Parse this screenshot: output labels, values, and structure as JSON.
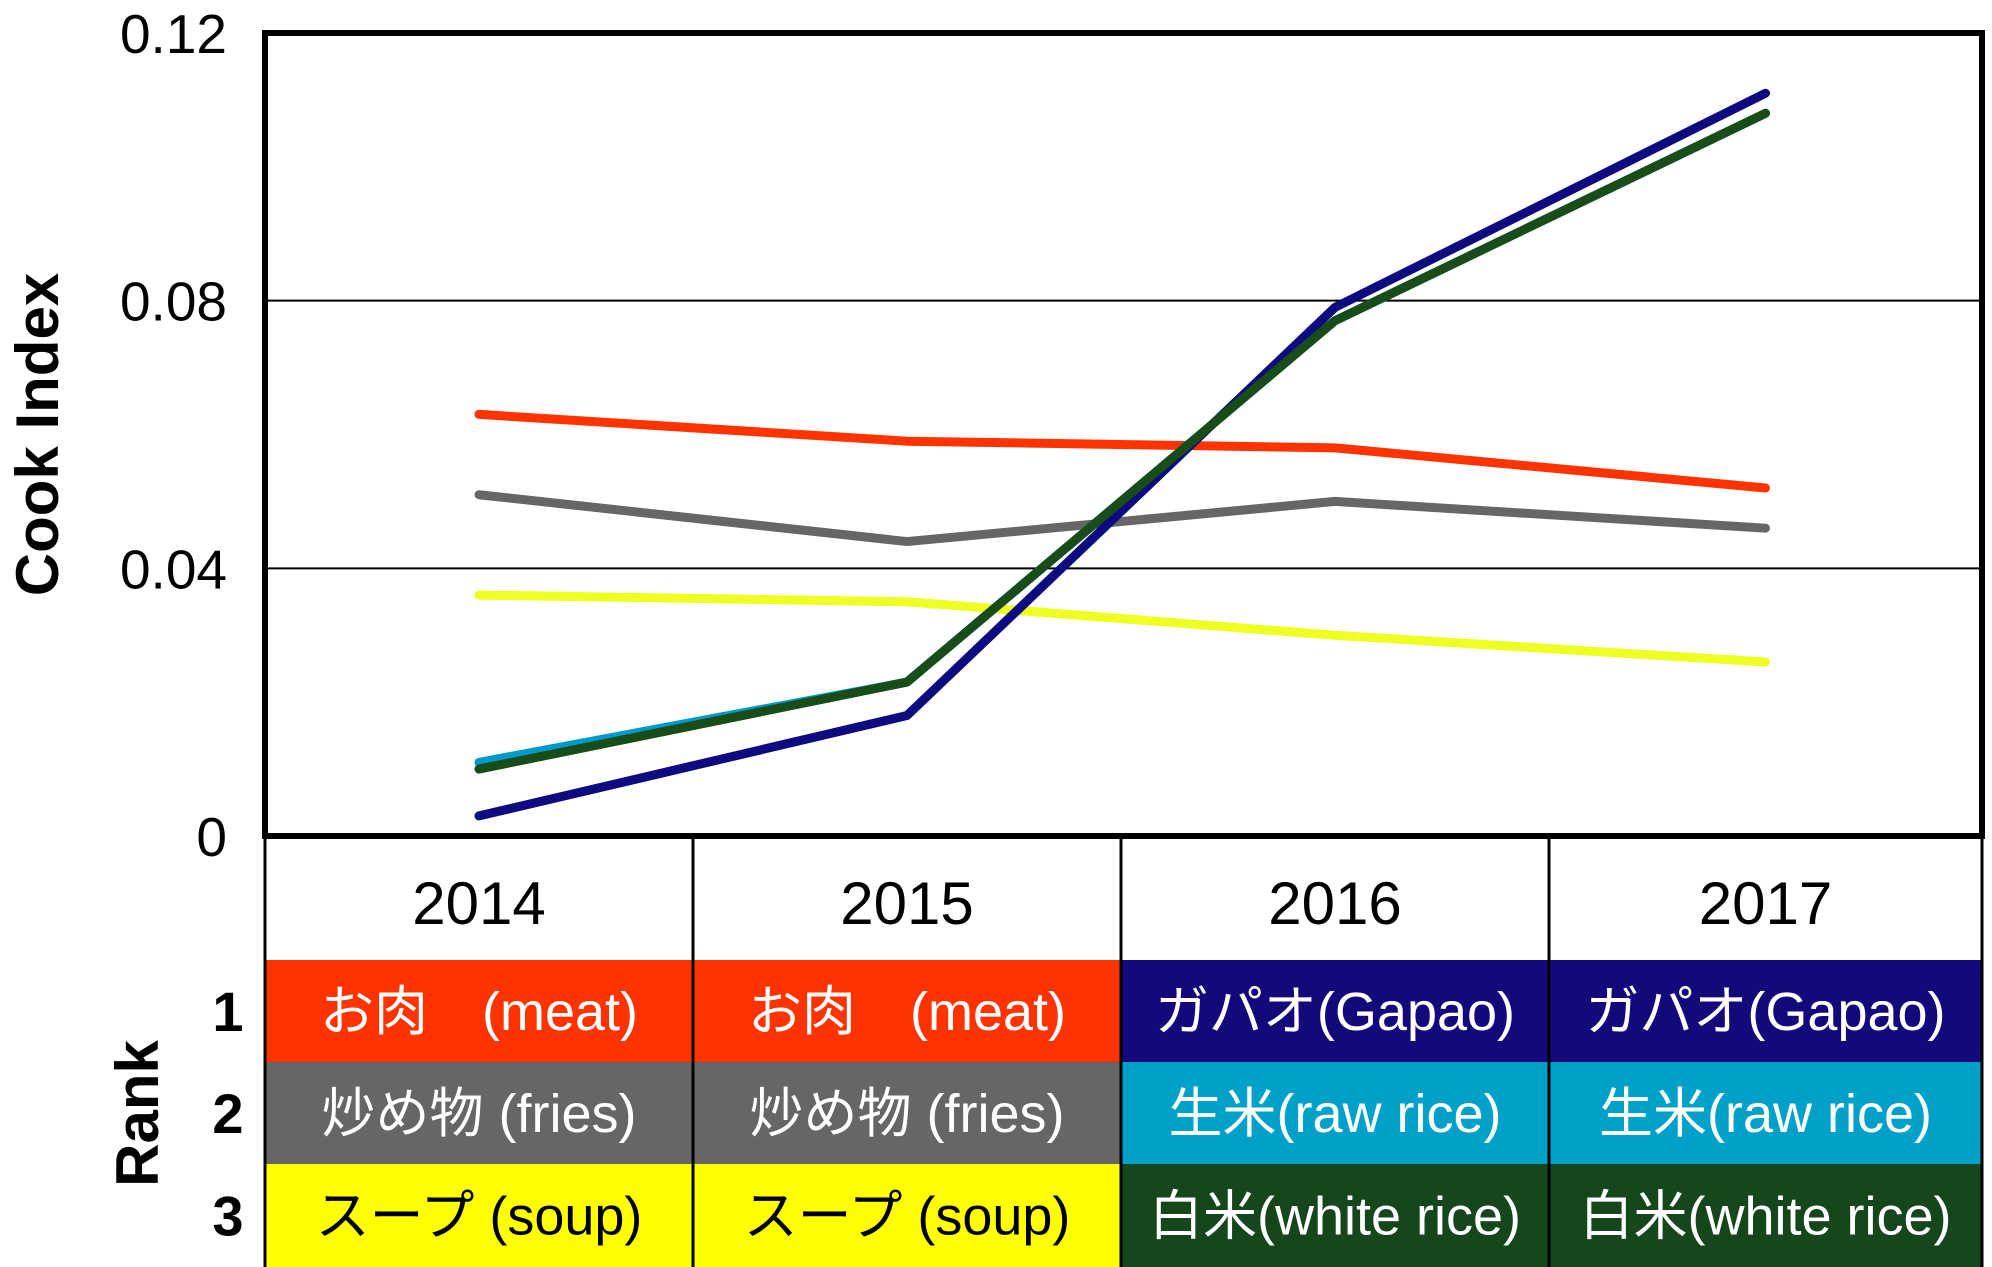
{
  "chart_data": {
    "type": "line",
    "ylabel": "Cook Index",
    "ylim": [
      0,
      0.12
    ],
    "yticks": [
      "0",
      "0.04",
      "0.08",
      "0.12"
    ],
    "categories": [
      "2014",
      "2015",
      "2016",
      "2017"
    ],
    "series": [
      {
        "color": "#ff3300",
        "values": [
          0.063,
          0.059,
          0.058,
          0.052
        ]
      },
      {
        "color": "#666666",
        "values": [
          0.051,
          0.044,
          0.05,
          0.046
        ]
      },
      {
        "color": "#eeff22",
        "values": [
          0.036,
          0.035,
          0.03,
          0.026
        ]
      },
      {
        "color": "#0099cc",
        "values": [
          0.011,
          0.023,
          0.077,
          0.108
        ]
      },
      {
        "color": "#0e0a80",
        "values": [
          0.003,
          0.018,
          0.079,
          0.111
        ]
      },
      {
        "color": "#184d1a",
        "values": [
          0.01,
          0.023,
          0.077,
          0.108
        ]
      }
    ],
    "grid": true
  },
  "rank_table": {
    "rank_label": "Rank",
    "ranks": [
      "1",
      "2",
      "3"
    ],
    "years": [
      "2014",
      "2015",
      "2016",
      "2017"
    ],
    "rows": [
      [
        {
          "text": "お肉　(meat)",
          "bg": "#ff3300",
          "fg": "#ffffff"
        },
        {
          "text": "お肉　(meat)",
          "bg": "#ff3300",
          "fg": "#ffffff"
        },
        {
          "text": "ガパオ(Gapao)",
          "bg": "#14097a",
          "fg": "#ffffff"
        },
        {
          "text": "ガパオ(Gapao)",
          "bg": "#14097a",
          "fg": "#ffffff"
        }
      ],
      [
        {
          "text": "炒め物 (fries)",
          "bg": "#666666",
          "fg": "#ffffff"
        },
        {
          "text": "炒め物 (fries)",
          "bg": "#666666",
          "fg": "#ffffff"
        },
        {
          "text": "生米(raw rice)",
          "bg": "#00a1c9",
          "fg": "#ffffff"
        },
        {
          "text": "生米(raw rice)",
          "bg": "#00a1c9",
          "fg": "#ffffff"
        }
      ],
      [
        {
          "text": "スープ (soup)",
          "bg": "#ffff00",
          "fg": "#000000"
        },
        {
          "text": "スープ (soup)",
          "bg": "#ffff00",
          "fg": "#000000"
        },
        {
          "text": "白米(white rice)",
          "bg": "#16461b",
          "fg": "#ffffff"
        },
        {
          "text": "白米(white rice)",
          "bg": "#16461b",
          "fg": "#ffffff"
        }
      ]
    ]
  }
}
